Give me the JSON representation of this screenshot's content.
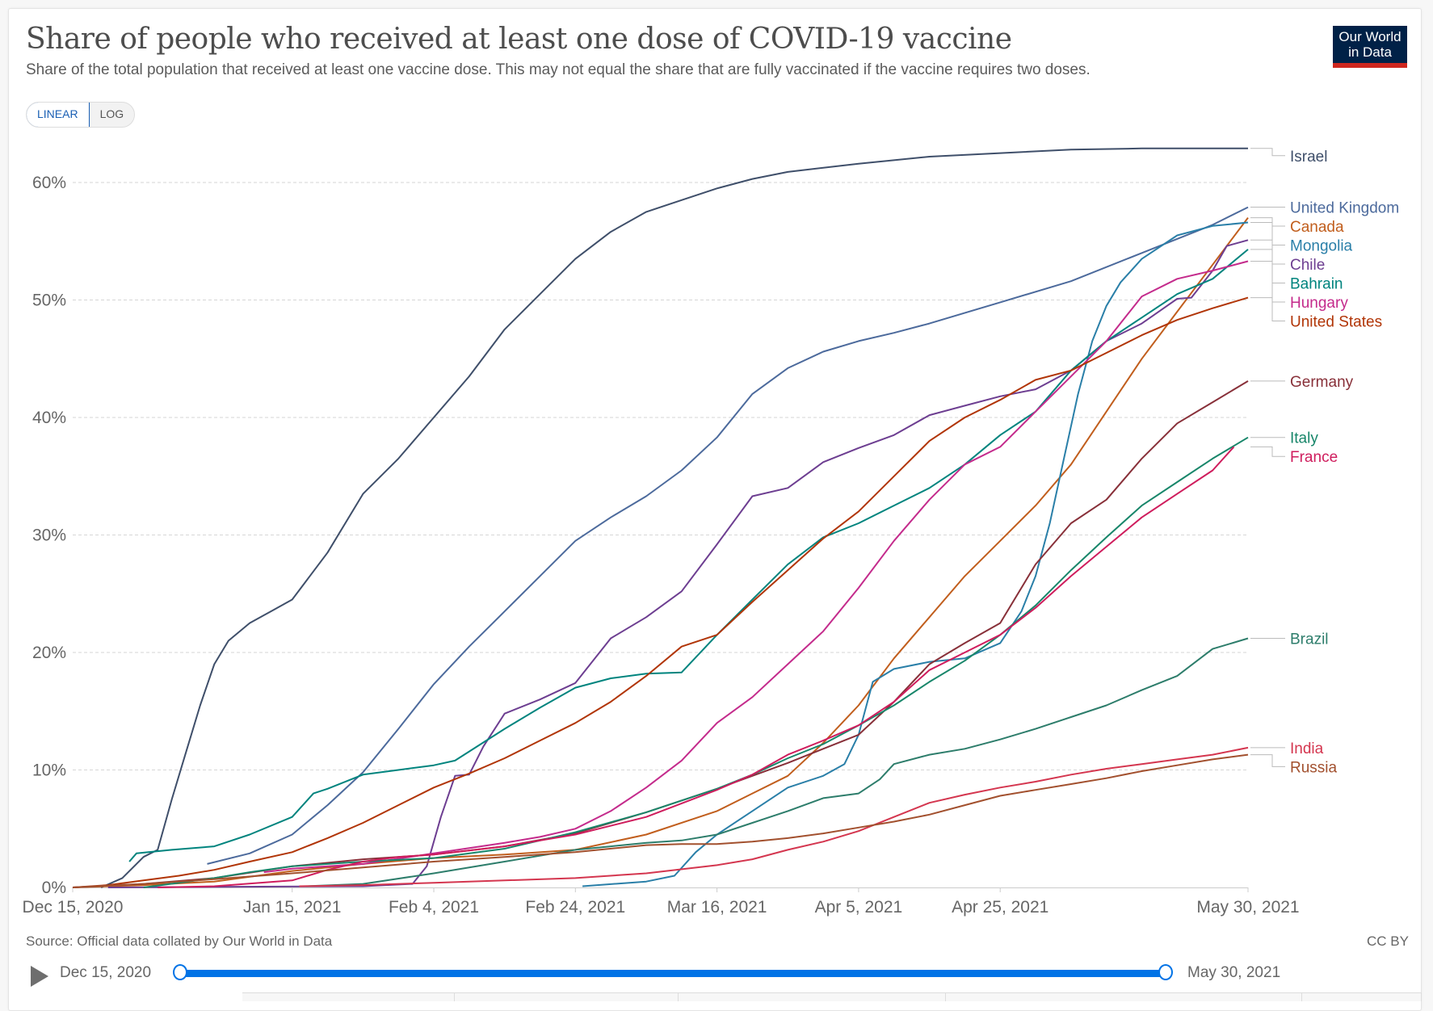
{
  "header": {
    "title": "Share of people who received at least one dose of COVID-19 vaccine",
    "subtitle": "Share of the total population that received at least one vaccine dose. This may not equal the share that are fully vaccinated if the vaccine requires two doses.",
    "logo_line1": "Our World",
    "logo_line2": "in Data"
  },
  "controls": {
    "linear_label": "LINEAR",
    "log_label": "LOG",
    "selected_scale": "LINEAR"
  },
  "footer": {
    "source": "Source: Official data collated by Our World in Data",
    "license": "CC BY"
  },
  "timeline": {
    "start_label": "Dec 15, 2020",
    "end_label": "May 30, 2021",
    "start_fraction": 0,
    "end_fraction": 1
  },
  "colors": {
    "timeline_accent": "#0073e6",
    "logo_bg": "#002147",
    "logo_bar": "#ce261e"
  },
  "chart_data": {
    "type": "line",
    "title": "Share of people who received at least one dose of COVID-19 vaccine",
    "xlabel": "",
    "ylabel": "",
    "x_unit": "days since Dec 15, 2020",
    "xlim": [
      0,
      166
    ],
    "ylim": [
      0,
      63
    ],
    "y_ticks": [
      0,
      10,
      20,
      30,
      40,
      50,
      60
    ],
    "y_tick_labels": [
      "0%",
      "10%",
      "20%",
      "30%",
      "40%",
      "50%",
      "60%"
    ],
    "x_ticks": [
      0,
      31,
      51,
      71,
      91,
      111,
      131,
      166
    ],
    "x_tick_labels": [
      "Dec 15, 2020",
      "Jan 15, 2021",
      "Feb 4, 2021",
      "Feb 24, 2021",
      "Mar 16, 2021",
      "Apr 5, 2021",
      "Apr 25, 2021",
      "May 30, 2021"
    ],
    "grid": "horizontal dashed",
    "legend": "right (end-of-line labels)",
    "series": [
      {
        "name": "Israel",
        "color": "#3f4f6a",
        "x": [
          4,
          7,
          10,
          12,
          14,
          16,
          18,
          20,
          22,
          25,
          28,
          31,
          36,
          41,
          46,
          51,
          56,
          61,
          66,
          71,
          76,
          81,
          86,
          91,
          96,
          101,
          111,
          121,
          131,
          141,
          151,
          166
        ],
        "y": [
          0,
          0.8,
          2.6,
          3.2,
          7.5,
          11.5,
          15.5,
          19,
          21,
          22.5,
          23.5,
          24.5,
          28.5,
          33.5,
          36.5,
          40,
          43.5,
          47.5,
          50.5,
          53.5,
          55.8,
          57.5,
          58.5,
          59.5,
          60.3,
          60.9,
          61.6,
          62.2,
          62.5,
          62.8,
          62.9,
          62.9
        ]
      },
      {
        "name": "United Kingdom",
        "color": "#4c6a9c",
        "x": [
          19,
          25,
          31,
          36,
          41,
          46,
          51,
          56,
          61,
          66,
          71,
          76,
          81,
          86,
          91,
          96,
          101,
          106,
          111,
          116,
          121,
          131,
          141,
          151,
          161,
          166
        ],
        "y": [
          2.0,
          2.9,
          4.5,
          7.0,
          9.8,
          13.5,
          17.3,
          20.5,
          23.5,
          26.5,
          29.5,
          31.5,
          33.3,
          35.5,
          38.3,
          42.0,
          44.2,
          45.6,
          46.5,
          47.2,
          48.0,
          49.8,
          51.6,
          54.0,
          56.4,
          57.9
        ]
      },
      {
        "name": "Canada",
        "color": "#c15e1d",
        "x": [
          0,
          10,
          20,
          31,
          41,
          51,
          61,
          71,
          81,
          91,
          96,
          101,
          106,
          111,
          116,
          121,
          126,
          131,
          136,
          141,
          146,
          151,
          156,
          161,
          166
        ],
        "y": [
          0,
          0.2,
          0.5,
          1.4,
          2.0,
          2.5,
          2.8,
          3.2,
          4.5,
          6.5,
          8.0,
          9.5,
          12.3,
          15.5,
          19.5,
          23.0,
          26.5,
          29.5,
          32.5,
          36.0,
          40.5,
          45.0,
          49.0,
          53.0,
          57.0
        ]
      },
      {
        "name": "Mongolia",
        "color": "#2a7fa8",
        "x": [
          72,
          81,
          85,
          88,
          91,
          96,
          101,
          106,
          109,
          111,
          113,
          116,
          121,
          126,
          131,
          134,
          136,
          138,
          140,
          142,
          144,
          146,
          148,
          151,
          156,
          161,
          166
        ],
        "y": [
          0.1,
          0.5,
          1.0,
          3.0,
          4.5,
          6.5,
          8.5,
          9.5,
          10.5,
          13,
          17.5,
          18.6,
          19.2,
          19.5,
          20.8,
          23.5,
          26.5,
          31,
          36.5,
          42,
          46.5,
          49.5,
          51.5,
          53.5,
          55.5,
          56.3,
          56.6
        ]
      },
      {
        "name": "Chile",
        "color": "#6d3e91",
        "x": [
          5,
          20,
          41,
          48,
          50,
          52,
          54,
          56,
          58,
          61,
          66,
          71,
          76,
          81,
          86,
          91,
          96,
          101,
          106,
          111,
          116,
          121,
          126,
          131,
          136,
          141,
          146,
          151,
          156,
          158,
          161,
          163,
          166
        ],
        "y": [
          0,
          0.05,
          0.1,
          0.3,
          1.8,
          6.0,
          9.5,
          9.6,
          12.0,
          14.8,
          16.0,
          17.4,
          21.2,
          23.0,
          25.2,
          29.2,
          33.3,
          34.0,
          36.2,
          37.4,
          38.5,
          40.2,
          41.0,
          41.8,
          42.4,
          44.0,
          46.5,
          48.0,
          50.1,
          50.2,
          52.5,
          54.6,
          55.1
        ]
      },
      {
        "name": "Bahrain",
        "color": "#00847e",
        "x": [
          8,
          9,
          14,
          20,
          25,
          31,
          34,
          36,
          41,
          46,
          51,
          54,
          61,
          66,
          71,
          76,
          81,
          86,
          91,
          96,
          101,
          106,
          111,
          116,
          121,
          126,
          131,
          136,
          141,
          146,
          151,
          156,
          161,
          166
        ],
        "y": [
          2.2,
          2.9,
          3.2,
          3.5,
          4.5,
          6.0,
          8.0,
          8.4,
          9.6,
          10.0,
          10.4,
          10.8,
          13.5,
          15.3,
          17.0,
          17.8,
          18.2,
          18.3,
          21.5,
          24.5,
          27.5,
          29.8,
          31.0,
          32.5,
          34.0,
          36.0,
          38.5,
          40.5,
          44.0,
          46.5,
          48.5,
          50.5,
          51.8,
          54.3
        ]
      },
      {
        "name": "Hungary",
        "color": "#c42b8c",
        "x": [
          27,
          31,
          41,
          51,
          61,
          66,
          71,
          76,
          81,
          86,
          91,
          96,
          101,
          106,
          111,
          116,
          121,
          126,
          131,
          136,
          141,
          146,
          151,
          156,
          161,
          166
        ],
        "y": [
          1.3,
          1.6,
          2.0,
          2.9,
          3.8,
          4.3,
          5.0,
          6.5,
          8.5,
          10.8,
          14.0,
          16.2,
          19.0,
          21.8,
          25.5,
          29.5,
          33.0,
          36.0,
          37.5,
          40.5,
          43.5,
          46.5,
          50.3,
          51.8,
          52.5,
          53.3
        ]
      },
      {
        "name": "United States",
        "color": "#b13507",
        "x": [
          0,
          5,
          10,
          15,
          20,
          25,
          31,
          36,
          41,
          46,
          51,
          56,
          61,
          66,
          71,
          76,
          81,
          86,
          91,
          96,
          101,
          106,
          111,
          116,
          121,
          126,
          131,
          136,
          141,
          146,
          151,
          156,
          161,
          166
        ],
        "y": [
          0,
          0.2,
          0.6,
          1.0,
          1.5,
          2.2,
          3.0,
          4.2,
          5.5,
          7.0,
          8.5,
          9.7,
          11.0,
          12.5,
          14.0,
          15.8,
          18.0,
          20.5,
          21.5,
          24.3,
          27.0,
          29.7,
          32.0,
          35.0,
          38.0,
          40.0,
          41.5,
          43.2,
          44.0,
          45.5,
          47.0,
          48.3,
          49.3,
          50.2
        ]
      },
      {
        "name": "Germany",
        "color": "#883039",
        "x": [
          0,
          10,
          20,
          31,
          41,
          51,
          61,
          71,
          81,
          91,
          101,
          106,
          111,
          116,
          121,
          126,
          131,
          136,
          141,
          146,
          151,
          156,
          161,
          166
        ],
        "y": [
          0,
          0.3,
          0.8,
          1.8,
          2.4,
          2.8,
          3.5,
          4.6,
          6.4,
          8.4,
          10.6,
          11.8,
          13.0,
          15.8,
          19.0,
          20.8,
          22.5,
          27.5,
          31.0,
          33.0,
          36.5,
          39.5,
          41.3,
          43.1
        ]
      },
      {
        "name": "Italy",
        "color": "#18866a",
        "x": [
          10,
          15,
          20,
          25,
          31,
          36,
          41,
          51,
          61,
          71,
          81,
          91,
          96,
          101,
          106,
          111,
          116,
          121,
          126,
          131,
          136,
          141,
          146,
          151,
          156,
          161,
          166
        ],
        "y": [
          0,
          0.4,
          0.8,
          1.3,
          1.8,
          2.0,
          2.2,
          2.5,
          3.3,
          4.7,
          6.4,
          8.4,
          9.6,
          11.0,
          12.2,
          13.8,
          15.5,
          17.5,
          19.3,
          21.5,
          24.0,
          27.0,
          29.8,
          32.5,
          34.5,
          36.5,
          38.3
        ]
      },
      {
        "name": "France",
        "color": "#cf1d5d",
        "x": [
          12,
          20,
          31,
          36,
          41,
          46,
          51,
          61,
          71,
          81,
          91,
          96,
          101,
          106,
          111,
          116,
          121,
          126,
          131,
          136,
          141,
          146,
          151,
          156,
          161,
          164
        ],
        "y": [
          0,
          0.1,
          0.6,
          1.5,
          2.2,
          2.6,
          2.8,
          3.5,
          4.5,
          6.0,
          8.3,
          9.6,
          11.3,
          12.5,
          13.8,
          15.8,
          18.5,
          20.0,
          21.5,
          23.8,
          26.5,
          29.0,
          31.5,
          33.5,
          35.5,
          37.5
        ]
      },
      {
        "name": "Brazil",
        "color": "#2d7d6b",
        "x": [
          33,
          41,
          51,
          61,
          71,
          76,
          81,
          86,
          91,
          96,
          101,
          106,
          111,
          114,
          116,
          121,
          126,
          131,
          136,
          141,
          146,
          151,
          156,
          161,
          166
        ],
        "y": [
          0.1,
          0.3,
          1.2,
          2.2,
          3.2,
          3.5,
          3.8,
          4.0,
          4.5,
          5.5,
          6.5,
          7.6,
          8.0,
          9.2,
          10.5,
          11.3,
          11.8,
          12.6,
          13.5,
          14.5,
          15.5,
          16.8,
          18.0,
          20.3,
          21.2
        ]
      },
      {
        "name": "India",
        "color": "#d4364f",
        "x": [
          32,
          41,
          51,
          61,
          71,
          81,
          91,
          96,
          101,
          106,
          111,
          116,
          121,
          126,
          131,
          136,
          141,
          146,
          151,
          156,
          161,
          166
        ],
        "y": [
          0.1,
          0.2,
          0.4,
          0.6,
          0.8,
          1.2,
          1.9,
          2.4,
          3.2,
          3.9,
          4.8,
          6.0,
          7.2,
          7.9,
          8.5,
          9.0,
          9.6,
          10.1,
          10.5,
          10.9,
          11.3,
          11.9
        ]
      },
      {
        "name": "Russia",
        "color": "#a2502e",
        "x": [
          0,
          10,
          20,
          31,
          41,
          51,
          61,
          71,
          81,
          86,
          91,
          96,
          101,
          106,
          111,
          116,
          121,
          126,
          131,
          136,
          141,
          146,
          151,
          156,
          161,
          166
        ],
        "y": [
          0,
          0.3,
          0.7,
          1.2,
          1.7,
          2.2,
          2.6,
          3.0,
          3.6,
          3.7,
          3.7,
          3.9,
          4.2,
          4.6,
          5.1,
          5.6,
          6.2,
          7.0,
          7.8,
          8.3,
          8.8,
          9.3,
          9.9,
          10.4,
          10.9,
          11.3
        ]
      }
    ],
    "label_order_note": "end-of-line labels sorted top to bottom",
    "labels": [
      "Israel",
      "United Kingdom",
      "Canada",
      "Mongolia",
      "Chile",
      "Bahrain",
      "Hungary",
      "United States",
      "Germany",
      "Italy",
      "France",
      "Brazil",
      "India",
      "Russia"
    ]
  }
}
